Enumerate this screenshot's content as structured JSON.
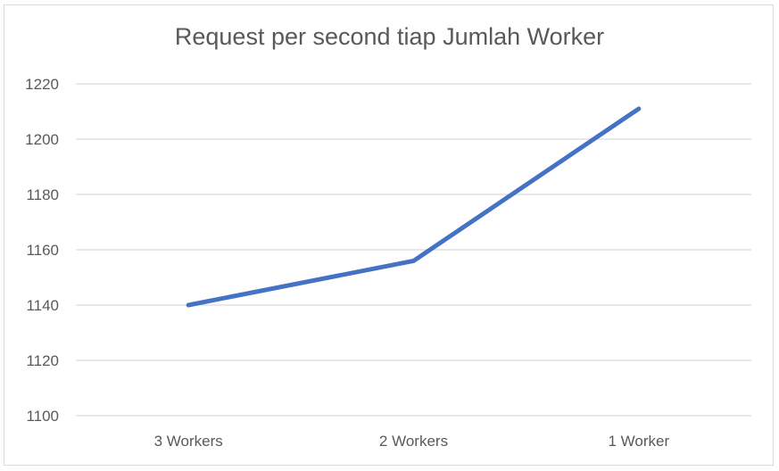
{
  "chart_data": {
    "type": "line",
    "title": "Request per second tiap Jumlah Worker",
    "xlabel": "",
    "ylabel": "",
    "categories": [
      "3 Workers",
      "2 Workers",
      "1 Worker"
    ],
    "series": [
      {
        "values": [
          1140,
          1156,
          1211
        ]
      }
    ],
    "ylim": [
      1100,
      1220
    ],
    "yticks": [
      1100,
      1120,
      1140,
      1160,
      1180,
      1200,
      1220
    ],
    "ytick_labels": [
      "1100",
      "1120",
      "1140",
      "1160",
      "1180",
      "1200",
      "1220"
    ],
    "grid": true,
    "legend": "none",
    "colors": {
      "line": "#4472c4",
      "grid": "#d9d9d9",
      "text": "#595959"
    }
  }
}
